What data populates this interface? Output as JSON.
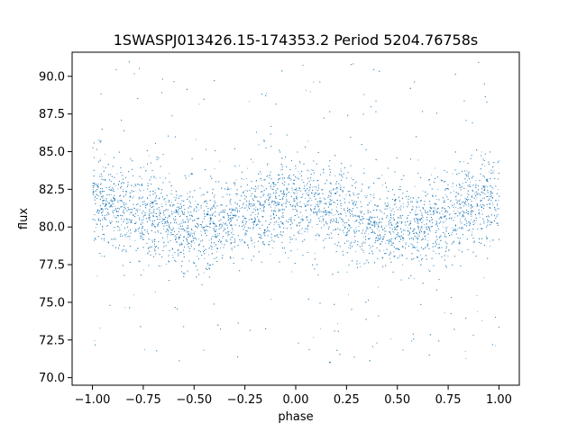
{
  "chart_data": {
    "type": "scatter",
    "title": "1SWASPJ013426.15-174353.2 Period 5204.76758s",
    "xlabel": "phase",
    "ylabel": "flux",
    "xlim": [
      -1.1,
      1.1
    ],
    "ylim": [
      69.5,
      91.6
    ],
    "grid": false,
    "legend": "none",
    "marker_color": "#1f77b4",
    "x_ticks": [
      -1.0,
      -0.75,
      -0.5,
      -0.25,
      0.0,
      0.25,
      0.5,
      0.75,
      1.0
    ],
    "x_tick_labels": [
      "−1.00",
      "−0.75",
      "−0.50",
      "−0.25",
      "0.00",
      "0.25",
      "0.50",
      "0.75",
      "1.00"
    ],
    "y_ticks": [
      70.0,
      72.5,
      75.0,
      77.5,
      80.0,
      82.5,
      85.0,
      87.5,
      90.0
    ],
    "y_tick_labels": [
      "70.0",
      "72.5",
      "75.0",
      "77.5",
      "80.0",
      "82.5",
      "85.0",
      "87.5",
      "90.0"
    ],
    "series": [
      {
        "phase": [
          -1.0,
          -0.9,
          -0.8,
          -0.7,
          -0.6,
          -0.5,
          -0.4,
          -0.3,
          -0.2,
          -0.1,
          0.0,
          0.1,
          0.2,
          0.3,
          0.4,
          0.5,
          0.6,
          0.7,
          0.8,
          0.9,
          1.0
        ],
        "flux_center": [
          81.7,
          81.6,
          81.1,
          80.6,
          80.1,
          79.9,
          80.1,
          80.6,
          81.1,
          81.6,
          81.7,
          81.6,
          81.1,
          80.6,
          80.1,
          79.9,
          80.1,
          80.6,
          81.1,
          81.6,
          81.7
        ],
        "flux_spread_core": 1.4,
        "flux_outlier_range": [
          70.8,
          91.0
        ]
      }
    ]
  }
}
